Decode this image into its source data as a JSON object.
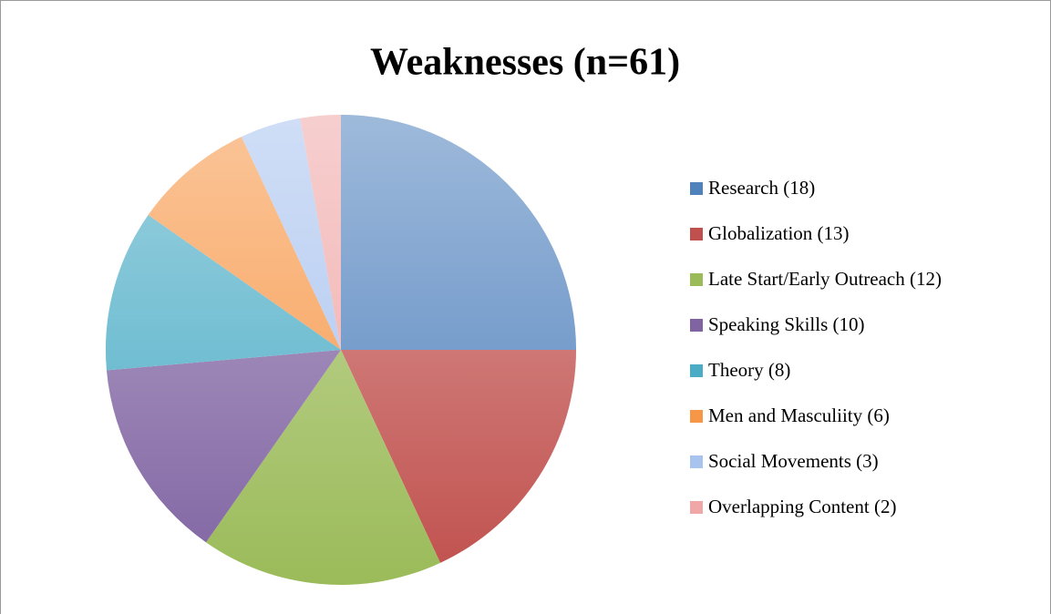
{
  "chart_data": {
    "type": "pie",
    "title": "Weaknesses (n=61)",
    "categories": [
      "Research (18)",
      "Globalization (13)",
      "Late Start/Early Outreach (12)",
      "Speaking Skills (10)",
      "Theory (8)",
      "Men and Masculiity (6)",
      "Social Movements (3)",
      "Overlapping Content (2)"
    ],
    "values": [
      18,
      13,
      12,
      10,
      8,
      6,
      3,
      2
    ],
    "colors": [
      "#4f81bd",
      "#c0504d",
      "#9bbb59",
      "#8064a2",
      "#4bacc6",
      "#f79646",
      "#a9c3ef",
      "#f0a7a7"
    ],
    "legend": "right"
  }
}
